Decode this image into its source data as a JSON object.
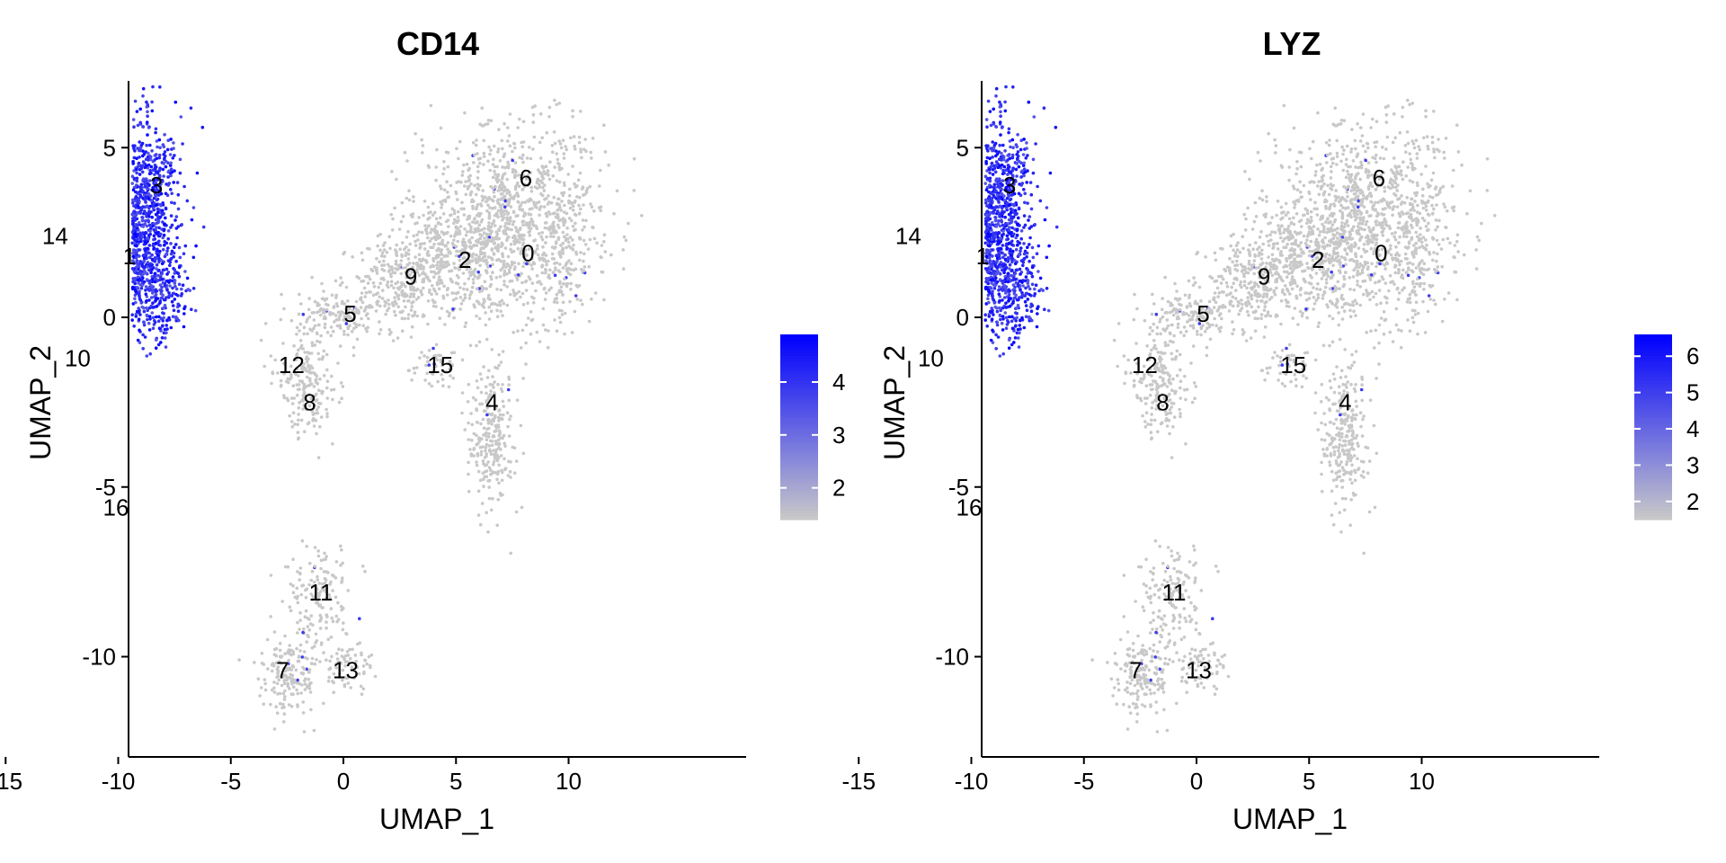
{
  "chart_data": [
    {
      "type": "scatter",
      "title": "CD14",
      "xlabel": "UMAP_1",
      "ylabel": "UMAP_2",
      "xlim": [
        -15.2,
        12.3
      ],
      "ylim": [
        -12.9,
        6.9
      ],
      "x_ticks": [
        -15,
        -10,
        -5,
        0,
        5,
        10
      ],
      "x_tick_labels": [
        "-15",
        "-10",
        "-5",
        "0",
        "5",
        "10"
      ],
      "y_ticks": [
        -10,
        -5,
        0,
        5
      ],
      "y_tick_labels": [
        "-10",
        "-5",
        "0",
        "5"
      ],
      "grid": false,
      "legend_placement": "right",
      "color_low": "#c8c8c8",
      "color_high": "#0000ff",
      "colorbar": {
        "min": 1.4,
        "max": 4.9,
        "ticks": [
          2,
          3,
          4
        ],
        "tick_labels": [
          "2",
          "3",
          "4"
        ]
      },
      "clusters": [
        {
          "label": "0",
          "x": 8.2,
          "y": 1.9
        },
        {
          "label": "1",
          "x": -9.5,
          "y": 1.8
        },
        {
          "label": "2",
          "x": 5.4,
          "y": 1.7
        },
        {
          "label": "3",
          "x": -8.3,
          "y": 3.9
        },
        {
          "label": "4",
          "x": 6.6,
          "y": -2.5
        },
        {
          "label": "5",
          "x": 0.3,
          "y": 0.1
        },
        {
          "label": "6",
          "x": 8.1,
          "y": 4.1
        },
        {
          "label": "7",
          "x": -2.7,
          "y": -10.4
        },
        {
          "label": "8",
          "x": -1.5,
          "y": -2.5
        },
        {
          "label": "9",
          "x": 3.0,
          "y": 1.2
        },
        {
          "label": "10",
          "x": -11.8,
          "y": -1.2
        },
        {
          "label": "11",
          "x": -1.0,
          "y": -8.1
        },
        {
          "label": "12",
          "x": -2.3,
          "y": -1.4
        },
        {
          "label": "13",
          "x": 0.1,
          "y": -10.4
        },
        {
          "label": "14",
          "x": -12.8,
          "y": 2.4
        },
        {
          "label": "15",
          "x": 4.3,
          "y": -1.4
        },
        {
          "label": "16",
          "x": -10.1,
          "y": -5.6
        }
      ],
      "high_expression_clusters": [
        "1",
        "3",
        "10",
        "14"
      ]
    },
    {
      "type": "scatter",
      "title": "LYZ",
      "xlabel": "UMAP_1",
      "ylabel": "UMAP_2",
      "xlim": [
        -15.2,
        12.3
      ],
      "ylim": [
        -12.9,
        6.9
      ],
      "x_ticks": [
        -15,
        -10,
        -5,
        0,
        5,
        10
      ],
      "x_tick_labels": [
        "-15",
        "-10",
        "-5",
        "0",
        "5",
        "10"
      ],
      "y_ticks": [
        -10,
        -5,
        0,
        5
      ],
      "y_tick_labels": [
        "-10",
        "-5",
        "0",
        "5"
      ],
      "grid": false,
      "legend_placement": "right",
      "color_low": "#c8c8c8",
      "color_high": "#0000ff",
      "colorbar": {
        "min": 1.5,
        "max": 6.6,
        "ticks": [
          2,
          3,
          4,
          5,
          6
        ],
        "tick_labels": [
          "2",
          "3",
          "4",
          "5",
          "6"
        ]
      },
      "clusters": [
        {
          "label": "0",
          "x": 8.2,
          "y": 1.9
        },
        {
          "label": "1",
          "x": -9.5,
          "y": 1.8
        },
        {
          "label": "2",
          "x": 5.4,
          "y": 1.7
        },
        {
          "label": "3",
          "x": -8.3,
          "y": 3.9
        },
        {
          "label": "4",
          "x": 6.6,
          "y": -2.5
        },
        {
          "label": "5",
          "x": 0.3,
          "y": 0.1
        },
        {
          "label": "6",
          "x": 8.1,
          "y": 4.1
        },
        {
          "label": "7",
          "x": -2.7,
          "y": -10.4
        },
        {
          "label": "8",
          "x": -1.5,
          "y": -2.5
        },
        {
          "label": "9",
          "x": 3.0,
          "y": 1.2
        },
        {
          "label": "10",
          "x": -11.8,
          "y": -1.2
        },
        {
          "label": "11",
          "x": -1.0,
          "y": -8.1
        },
        {
          "label": "12",
          "x": -2.3,
          "y": -1.4
        },
        {
          "label": "13",
          "x": 0.1,
          "y": -10.4
        },
        {
          "label": "14",
          "x": -12.8,
          "y": 2.4
        },
        {
          "label": "15",
          "x": 4.3,
          "y": -1.4
        },
        {
          "label": "16",
          "x": -10.1,
          "y": -5.6
        }
      ],
      "high_expression_clusters": [
        "1",
        "3",
        "14"
      ]
    }
  ]
}
